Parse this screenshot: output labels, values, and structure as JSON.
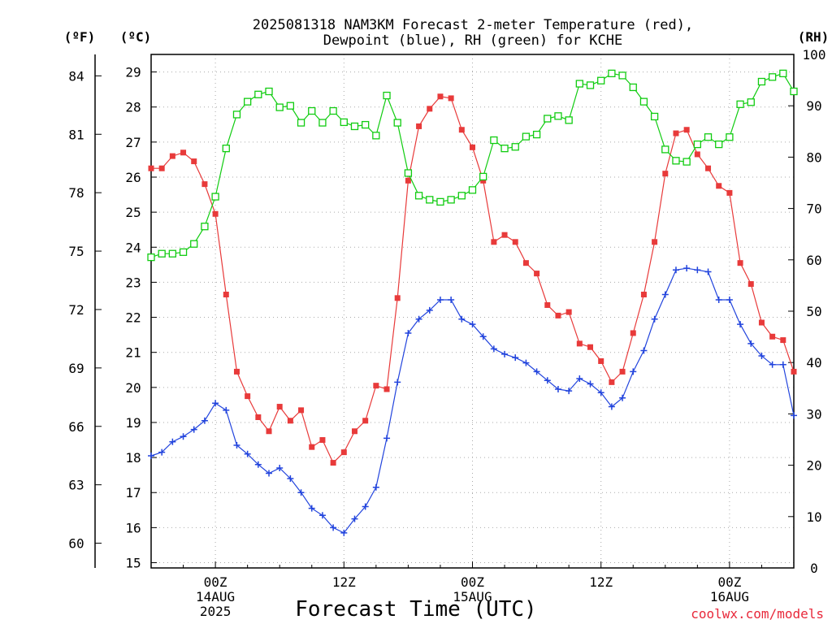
{
  "title": {
    "line1": "2025081318 NAM3KM Forecast 2-meter Temperature (red),",
    "line2": "Dewpoint (blue), RH (green) for KCHE"
  },
  "axis_headers": {
    "left_f": "(ºF)",
    "left_c": "(ºC)",
    "right_rh": "(RH)"
  },
  "xlabel": "Forecast Time (UTC)",
  "credit": "coolwx.com/models",
  "colors": {
    "temperature": "#e83a3a",
    "dewpoint": "#2244dd",
    "rh": "#11cc11",
    "grid": "#aaaaaa"
  },
  "chart_data": {
    "type": "line",
    "x_start_utc": "2025-08-13 18Z",
    "x_step_hours": 1,
    "x_tick_labels": [
      {
        "hour": 6,
        "lines": [
          "00Z",
          "14AUG",
          "2025"
        ]
      },
      {
        "hour": 18,
        "lines": [
          "12Z"
        ]
      },
      {
        "hour": 30,
        "lines": [
          "00Z",
          "15AUG"
        ]
      },
      {
        "hour": 42,
        "lines": [
          "12Z"
        ]
      },
      {
        "hour": 54,
        "lines": [
          "00Z",
          "16AUG"
        ]
      }
    ],
    "xlim_hours": [
      0,
      60
    ],
    "y_celsius": {
      "ticks": [
        15,
        16,
        17,
        18,
        19,
        20,
        21,
        22,
        23,
        24,
        25,
        26,
        27,
        28,
        29
      ],
      "lim": [
        14.85,
        29.5
      ]
    },
    "y_fahrenheit": {
      "ticks": [
        60,
        63,
        66,
        69,
        72,
        75,
        78,
        81,
        84
      ]
    },
    "y_rh": {
      "ticks": [
        0,
        10,
        20,
        30,
        40,
        50,
        60,
        70,
        80,
        90,
        100
      ],
      "lim": [
        0,
        100
      ]
    },
    "grid": true,
    "series": [
      {
        "name": "2-meter Temperature",
        "axis": "celsius",
        "marker": "filled-square",
        "color": "#e83a3a",
        "values": [
          26.25,
          26.25,
          26.6,
          26.7,
          26.45,
          25.8,
          24.95,
          22.65,
          20.45,
          19.75,
          19.15,
          18.75,
          19.45,
          19.05,
          19.35,
          18.3,
          18.5,
          17.85,
          18.15,
          18.75,
          19.05,
          20.05,
          19.95,
          22.55,
          25.9,
          27.45,
          27.95,
          28.3,
          28.25,
          27.35,
          26.85,
          25.9,
          24.15,
          24.35,
          24.15,
          23.55,
          23.25,
          22.35,
          22.05,
          22.15,
          21.25,
          21.15,
          20.75,
          20.15,
          20.45,
          21.55,
          22.65,
          24.15,
          26.1,
          27.25,
          27.35,
          26.65,
          26.25,
          25.75,
          25.55,
          23.55,
          22.95,
          21.85,
          21.45,
          21.35,
          20.45
        ]
      },
      {
        "name": "Dewpoint",
        "axis": "celsius",
        "marker": "plus",
        "color": "#2244dd",
        "values": [
          18.05,
          18.15,
          18.45,
          18.6,
          18.8,
          19.05,
          19.55,
          19.35,
          18.35,
          18.1,
          17.8,
          17.55,
          17.7,
          17.4,
          17.0,
          16.55,
          16.35,
          16.0,
          15.85,
          16.25,
          16.6,
          17.15,
          18.55,
          20.15,
          21.55,
          21.95,
          22.2,
          22.5,
          22.5,
          21.95,
          21.8,
          21.45,
          21.1,
          20.95,
          20.85,
          20.7,
          20.45,
          20.2,
          19.95,
          19.9,
          20.25,
          20.1,
          19.85,
          19.45,
          19.7,
          20.45,
          21.05,
          21.95,
          22.65,
          23.35,
          23.4,
          23.35,
          23.3,
          22.5,
          22.5,
          21.8,
          21.25,
          20.9,
          20.65,
          20.65,
          19.2
        ]
      },
      {
        "name": "RH",
        "axis": "rh",
        "marker": "open-square",
        "color": "#11cc11",
        "values": [
          60.5,
          61.2,
          61.2,
          61.5,
          63.1,
          66.5,
          72.3,
          81.7,
          88.3,
          90.8,
          92.2,
          92.8,
          89.7,
          90.0,
          86.7,
          89.0,
          86.7,
          89.0,
          86.8,
          86.0,
          86.3,
          84.2,
          92.0,
          86.7,
          76.9,
          72.5,
          71.7,
          71.3,
          71.7,
          72.5,
          73.6,
          76.2,
          83.3,
          81.7,
          82.0,
          84.0,
          84.4,
          87.5,
          88.0,
          87.2,
          94.3,
          94.0,
          94.9,
          96.3,
          95.9,
          93.6,
          90.8,
          87.9,
          81.5,
          79.3,
          79.1,
          82.5,
          83.9,
          82.5,
          83.9,
          90.3,
          90.7,
          94.7,
          95.6,
          96.3,
          92.8
        ]
      }
    ]
  }
}
